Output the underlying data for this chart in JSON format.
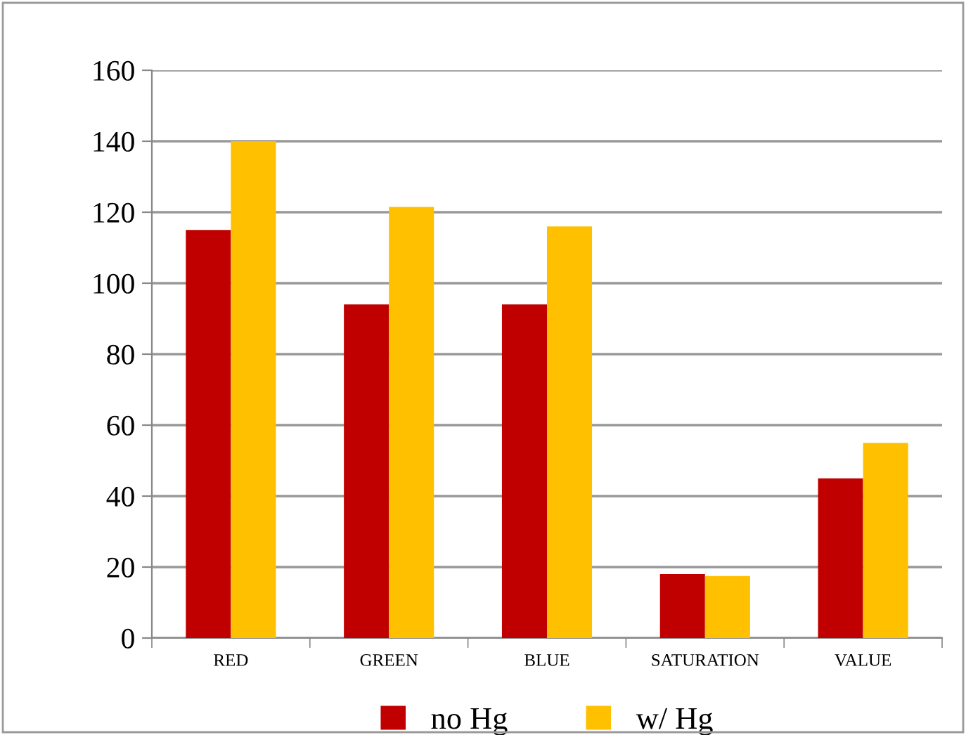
{
  "chart_data": {
    "type": "bar",
    "categories": [
      "RED",
      "GREEN",
      "BLUE",
      "SATURATION",
      "VALUE"
    ],
    "series": [
      {
        "name": "no Hg",
        "color": "#c00000",
        "values": [
          115,
          94,
          94,
          18,
          45
        ]
      },
      {
        "name": "w/ Hg",
        "color": "#ffc000",
        "values": [
          140,
          121.5,
          116,
          17.5,
          55
        ]
      }
    ],
    "ylim": [
      0,
      160
    ],
    "yticks": [
      0,
      20,
      40,
      60,
      80,
      100,
      120,
      140,
      160
    ],
    "grid": "y",
    "legend": "bottom"
  }
}
